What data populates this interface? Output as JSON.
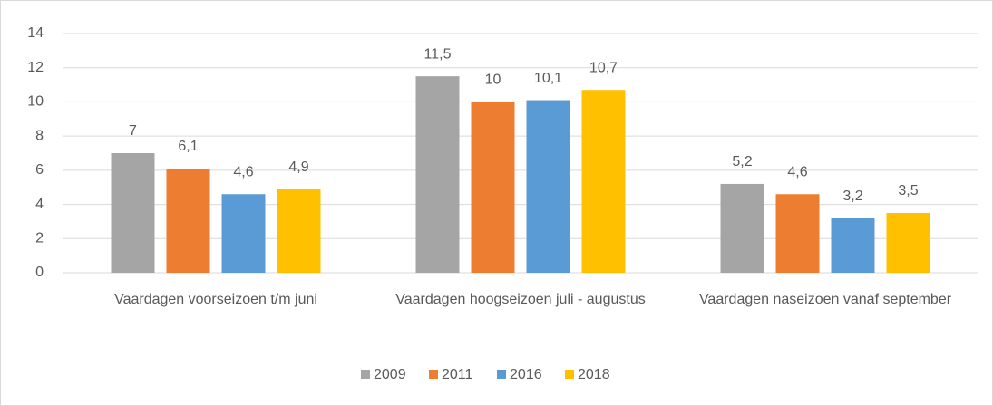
{
  "chart_data": {
    "type": "bar",
    "categories": [
      "Vaardagen voorseizoen t/m juni",
      "Vaardagen hoogseizoen juli - augustus",
      "Vaardagen naseizoen vanaf september"
    ],
    "series": [
      {
        "name": "2009",
        "color": "#a5a5a5",
        "values": [
          7,
          11.5,
          5.2
        ],
        "value_labels": [
          "7",
          "11,5",
          "5,2"
        ]
      },
      {
        "name": "2011",
        "color": "#ed7d31",
        "values": [
          6.1,
          10,
          4.6
        ],
        "value_labels": [
          "6,1",
          "10",
          "4,6"
        ]
      },
      {
        "name": "2016",
        "color": "#5b9bd5",
        "values": [
          4.6,
          10.1,
          3.2
        ],
        "value_labels": [
          "4,6",
          "10,1",
          "3,2"
        ]
      },
      {
        "name": "2018",
        "color": "#ffc000",
        "values": [
          4.9,
          10.7,
          3.5
        ],
        "value_labels": [
          "4,9",
          "10,7",
          "3,5"
        ]
      }
    ],
    "ylim": [
      0,
      14
    ],
    "yticks": [
      0,
      2,
      4,
      6,
      8,
      10,
      12,
      14
    ],
    "grid": true,
    "legend": "bottom"
  }
}
